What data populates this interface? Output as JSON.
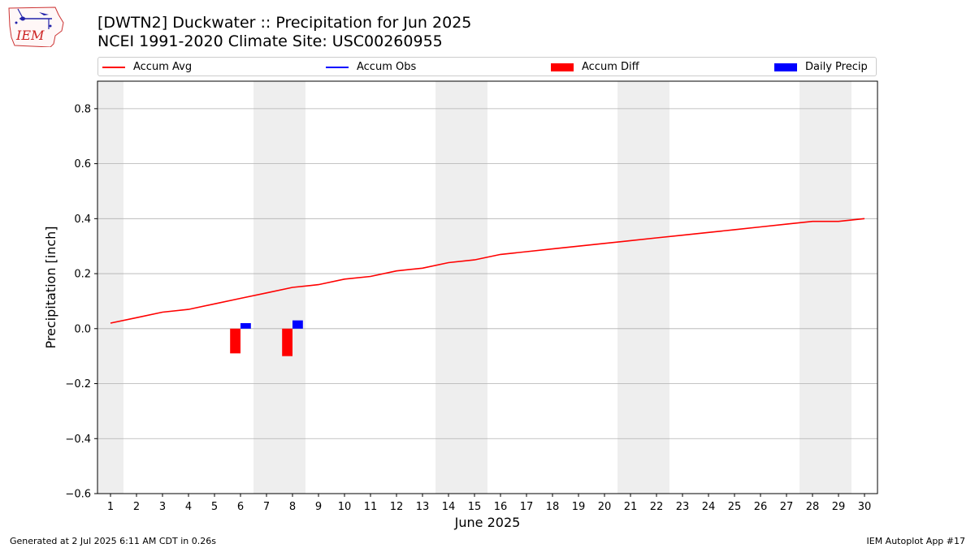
{
  "header": {
    "title": "[DWTN2] Duckwater :: Precipitation for Jun 2025",
    "subtitle": "NCEI 1991-2020 Climate Site: USC00260955"
  },
  "logo": {
    "text": "IEM",
    "icon": "iem-iowa-logo-icon"
  },
  "footer": {
    "generated": "Generated at 2 Jul 2025 6:11 AM CDT in 0.26s",
    "app": "IEM Autoplot App #17"
  },
  "colors": {
    "avg": "#ff0000",
    "obs": "#0000ff",
    "diff": "#ff0000",
    "daily": "#0000ff",
    "weekend": "#eeeeee",
    "grid": "#b0b0b0"
  },
  "chart_data": {
    "type": "line",
    "xlabel": "June 2025",
    "ylabel": "Precipitation [inch]",
    "xlim": [
      0.5,
      30.5
    ],
    "ylim": [
      -0.6,
      0.9
    ],
    "x_ticks": [
      1,
      2,
      3,
      4,
      5,
      6,
      7,
      8,
      9,
      10,
      11,
      12,
      13,
      14,
      15,
      16,
      17,
      18,
      19,
      20,
      21,
      22,
      23,
      24,
      25,
      26,
      27,
      28,
      29,
      30
    ],
    "y_ticks": [
      -0.6,
      -0.4,
      -0.2,
      0.0,
      0.2,
      0.4,
      0.6,
      0.8
    ],
    "y_tick_labels": [
      "−0.6",
      "−0.4",
      "−0.2",
      "0.0",
      "0.2",
      "0.4",
      "0.6",
      "0.8"
    ],
    "grid": "horizontal",
    "legend_position": "top",
    "weekend_days": [
      1,
      7,
      8,
      14,
      15,
      21,
      22,
      28,
      29
    ],
    "series": [
      {
        "name": "Accum Avg",
        "type": "line",
        "x": [
          1,
          2,
          3,
          4,
          5,
          6,
          7,
          8,
          9,
          10,
          11,
          12,
          13,
          14,
          15,
          16,
          17,
          18,
          19,
          20,
          21,
          22,
          23,
          24,
          25,
          26,
          27,
          28,
          29,
          30
        ],
        "values": [
          0.02,
          0.04,
          0.06,
          0.07,
          0.09,
          0.11,
          0.13,
          0.15,
          0.16,
          0.18,
          0.19,
          0.21,
          0.22,
          0.24,
          0.25,
          0.27,
          0.28,
          0.29,
          0.3,
          0.31,
          0.32,
          0.33,
          0.34,
          0.35,
          0.36,
          0.37,
          0.38,
          0.39,
          0.39,
          0.4
        ]
      },
      {
        "name": "Accum Obs",
        "type": "line",
        "x": [],
        "values": []
      },
      {
        "name": "Accum Diff",
        "type": "bar",
        "x": [
          6,
          8
        ],
        "values": [
          -0.09,
          -0.1
        ]
      },
      {
        "name": "Daily Precip",
        "type": "bar",
        "x": [
          6,
          8
        ],
        "values": [
          0.02,
          0.03
        ]
      }
    ]
  }
}
